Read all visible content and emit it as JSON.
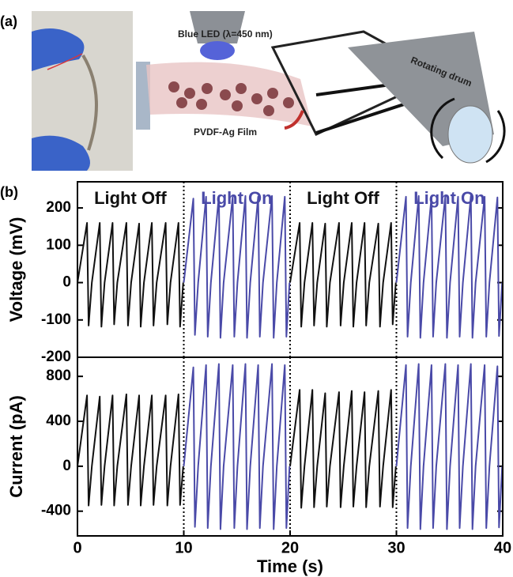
{
  "panel_a": {
    "label": "(a)",
    "led_label": "Blue LED (λ=450 nm)",
    "drum_label": "Rotating drum",
    "film_label": "PVDF-Ag Film"
  },
  "panel_b_label": "(b)",
  "chart_data": [
    {
      "type": "line",
      "ylabel": "Voltage (mV)",
      "xlim": [
        0,
        40
      ],
      "ylim": [
        -200,
        270
      ],
      "yticks": [
        -200,
        -100,
        0,
        100,
        200
      ],
      "dividers": [
        10,
        20,
        30
      ],
      "series": [
        {
          "name": "Light Off",
          "color": "#111111",
          "x": [
            0,
            0.9,
            1.05,
            1.35,
            2.1,
            2.25,
            2.55,
            3.3,
            3.45,
            3.75,
            4.6,
            4.75,
            5.05,
            5.8,
            5.95,
            6.25,
            7.0,
            7.15,
            7.45,
            8.3,
            8.45,
            8.75,
            9.5,
            9.65,
            9.95
          ],
          "values": [
            0,
            160,
            -115,
            0,
            160,
            -118,
            0,
            160,
            -112,
            0,
            160,
            -115,
            0,
            158,
            -118,
            0,
            160,
            -115,
            0,
            160,
            -112,
            0,
            160,
            -118,
            0
          ]
        },
        {
          "name": "Light On",
          "color": "#4a4aa8",
          "x": [
            10,
            10.9,
            11.05,
            11.35,
            12.1,
            12.25,
            12.55,
            13.3,
            13.45,
            13.75,
            14.6,
            14.75,
            15.05,
            15.8,
            15.95,
            16.25,
            17.0,
            17.15,
            17.45,
            18.3,
            18.45,
            18.75,
            19.5,
            19.65,
            19.95
          ],
          "values": [
            0,
            225,
            -140,
            0,
            230,
            -145,
            0,
            232,
            -148,
            0,
            230,
            -145,
            0,
            232,
            -148,
            0,
            230,
            -145,
            0,
            232,
            -148,
            0,
            230,
            -145,
            0
          ]
        },
        {
          "name": "Light Off",
          "color": "#111111",
          "x": [
            20,
            20.9,
            21.05,
            21.35,
            22.1,
            22.25,
            22.55,
            23.3,
            23.45,
            23.75,
            24.6,
            24.75,
            25.05,
            25.8,
            25.95,
            26.25,
            27.0,
            27.15,
            27.45,
            28.3,
            28.45,
            28.75,
            29.5,
            29.65,
            29.95
          ],
          "values": [
            0,
            160,
            -118,
            0,
            160,
            -115,
            0,
            158,
            -118,
            0,
            160,
            -115,
            0,
            160,
            -118,
            0,
            160,
            -115,
            0,
            158,
            -118,
            0,
            160,
            -112,
            0
          ]
        },
        {
          "name": "Light On",
          "color": "#4a4aa8",
          "x": [
            30,
            30.9,
            31.05,
            31.35,
            32.1,
            32.25,
            32.55,
            33.3,
            33.45,
            33.75,
            34.6,
            34.75,
            35.05,
            35.8,
            35.95,
            36.25,
            37.0,
            37.15,
            37.45,
            38.3,
            38.45,
            38.75,
            39.5,
            39.65,
            39.95
          ],
          "values": [
            0,
            230,
            -145,
            0,
            232,
            -148,
            0,
            230,
            -145,
            0,
            232,
            -148,
            0,
            230,
            -145,
            0,
            232,
            -148,
            0,
            230,
            -145,
            0,
            228,
            -143,
            0
          ]
        }
      ]
    },
    {
      "type": "line",
      "ylabel": "Current (pA)",
      "xlabel": "Time (s)",
      "xlim": [
        0,
        40
      ],
      "xticks": [
        0,
        10,
        20,
        30,
        40
      ],
      "ylim": [
        -620,
        970
      ],
      "yticks": [
        -400,
        0,
        400,
        800
      ],
      "dividers": [
        10,
        20,
        30
      ],
      "series": [
        {
          "color": "#111111",
          "x": [
            0,
            0.9,
            1.05,
            1.35,
            2.1,
            2.25,
            2.55,
            3.3,
            3.45,
            3.75,
            4.6,
            4.75,
            5.05,
            5.8,
            5.95,
            6.25,
            7.0,
            7.15,
            7.45,
            8.3,
            8.45,
            8.75,
            9.5,
            9.65,
            9.95
          ],
          "values": [
            0,
            630,
            -350,
            0,
            620,
            -345,
            0,
            630,
            -350,
            0,
            640,
            -345,
            0,
            630,
            -350,
            0,
            630,
            -345,
            0,
            630,
            -350,
            0,
            640,
            -345,
            0
          ]
        },
        {
          "color": "#4a4aa8",
          "x": [
            10,
            10.9,
            11.05,
            11.35,
            12.1,
            12.25,
            12.55,
            13.3,
            13.45,
            13.75,
            14.6,
            14.75,
            15.05,
            15.8,
            15.95,
            16.25,
            17.0,
            17.15,
            17.45,
            18.3,
            18.45,
            18.75,
            19.5,
            19.65,
            19.95
          ],
          "values": [
            0,
            880,
            -540,
            0,
            900,
            -550,
            0,
            910,
            -560,
            0,
            900,
            -550,
            0,
            910,
            -560,
            0,
            900,
            -550,
            0,
            910,
            -560,
            0,
            900,
            -550,
            0
          ]
        },
        {
          "color": "#111111",
          "x": [
            20,
            20.9,
            21.05,
            21.35,
            22.1,
            22.25,
            22.55,
            23.3,
            23.45,
            23.75,
            24.6,
            24.75,
            25.05,
            25.8,
            25.95,
            26.25,
            27.0,
            27.15,
            27.45,
            28.3,
            28.45,
            28.75,
            29.5,
            29.65,
            29.95
          ],
          "values": [
            0,
            680,
            -370,
            0,
            680,
            -365,
            0,
            650,
            -360,
            0,
            660,
            -365,
            0,
            670,
            -360,
            0,
            660,
            -365,
            0,
            670,
            -360,
            0,
            680,
            -365,
            0
          ]
        },
        {
          "color": "#4a4aa8",
          "x": [
            30,
            30.9,
            31.05,
            31.35,
            32.1,
            32.25,
            32.55,
            33.3,
            33.45,
            33.75,
            34.6,
            34.75,
            35.05,
            35.8,
            35.95,
            36.25,
            37.0,
            37.15,
            37.45,
            38.3,
            38.45,
            38.75,
            39.5,
            39.65,
            39.95
          ],
          "values": [
            0,
            900,
            -550,
            0,
            910,
            -560,
            0,
            900,
            -550,
            0,
            910,
            -560,
            0,
            900,
            -550,
            0,
            910,
            -560,
            0,
            900,
            -550,
            0,
            890,
            -545,
            0
          ]
        }
      ]
    }
  ]
}
